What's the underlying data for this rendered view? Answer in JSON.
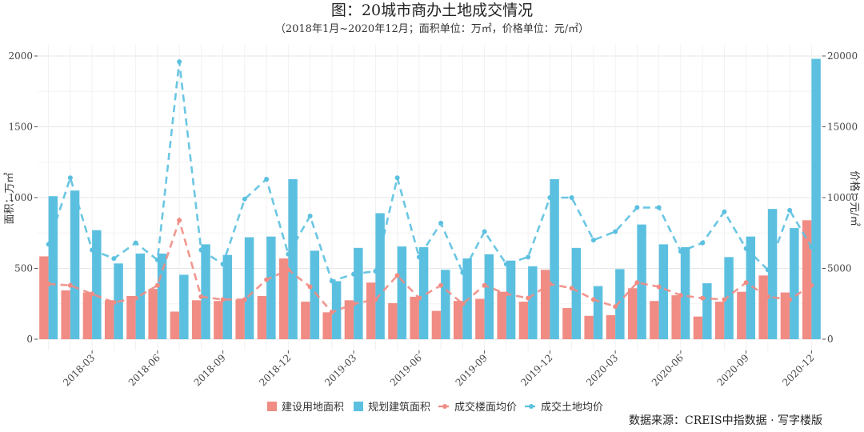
{
  "chart_data": {
    "type": "bar",
    "title": "图：20城市商办土地成交情况",
    "subtitle": "（2018年1月~2020年12月；面积单位：万㎡，价格单位：元/㎡）",
    "ylabel_left": "面积：万㎡",
    "ylabel_right": "价格：元/㎡",
    "ylim_left": [
      0,
      2000
    ],
    "ylim_right": [
      0,
      20000
    ],
    "yticks_left": [
      "0",
      "500",
      "1000",
      "1500",
      "2000"
    ],
    "yticks_right": [
      "0",
      "5000",
      "10000",
      "15000",
      "20000"
    ],
    "xtick_labels": [
      {
        "index": 2,
        "label": "2018-03"
      },
      {
        "index": 5,
        "label": "2018-06"
      },
      {
        "index": 8,
        "label": "2018-09"
      },
      {
        "index": 11,
        "label": "2018-12"
      },
      {
        "index": 14,
        "label": "2019-03"
      },
      {
        "index": 17,
        "label": "2019-06"
      },
      {
        "index": 20,
        "label": "2019-09"
      },
      {
        "index": 23,
        "label": "2019-12"
      },
      {
        "index": 26,
        "label": "2020-03"
      },
      {
        "index": 29,
        "label": "2020-06"
      },
      {
        "index": 32,
        "label": "2020-09"
      },
      {
        "index": 35,
        "label": "2020-12"
      }
    ],
    "series": [
      {
        "name": "建设用地面积",
        "kind": "bar",
        "axis": "left",
        "color": "#F08C84",
        "values": [
          585,
          345,
          330,
          275,
          305,
          355,
          195,
          275,
          270,
          280,
          305,
          570,
          265,
          190,
          275,
          400,
          255,
          300,
          200,
          270,
          285,
          335,
          265,
          490,
          220,
          165,
          170,
          360,
          270,
          310,
          160,
          265,
          335,
          450,
          330,
          840
        ]
      },
      {
        "name": "规划建筑面积",
        "kind": "bar",
        "axis": "left",
        "color": "#5BC0E0",
        "values": [
          1010,
          1050,
          770,
          535,
          605,
          605,
          455,
          670,
          595,
          720,
          725,
          1130,
          625,
          410,
          645,
          890,
          655,
          650,
          490,
          570,
          600,
          555,
          515,
          1130,
          645,
          375,
          495,
          810,
          670,
          650,
          395,
          580,
          725,
          920,
          785,
          1980
        ]
      },
      {
        "name": "成交楼面均价",
        "kind": "line",
        "axis": "right",
        "color": "#F08C84",
        "values": [
          3900,
          3800,
          3200,
          2600,
          2900,
          3800,
          8400,
          3000,
          2800,
          2800,
          4200,
          4900,
          3700,
          1900,
          2500,
          2800,
          4500,
          2900,
          3800,
          2500,
          3800,
          3200,
          2900,
          3900,
          3600,
          2800,
          2300,
          4000,
          3700,
          3100,
          2900,
          2800,
          4000,
          3000,
          2800,
          3800
        ]
      },
      {
        "name": "成交土地均价",
        "kind": "line",
        "axis": "right",
        "color": "#5BC0E0",
        "values": [
          6700,
          11400,
          6300,
          5700,
          6800,
          5600,
          19600,
          6300,
          5300,
          9900,
          11300,
          6000,
          8700,
          4100,
          4600,
          4800,
          11400,
          5800,
          8200,
          4700,
          7600,
          5300,
          5800,
          10000,
          10000,
          7000,
          7600,
          9300,
          9300,
          6200,
          6800,
          9000,
          6400,
          4900,
          9100,
          6500
        ]
      }
    ],
    "legend_position": "bottom",
    "grid": true
  },
  "source": "数据来源：CREIS中指数据 · 写字楼版"
}
